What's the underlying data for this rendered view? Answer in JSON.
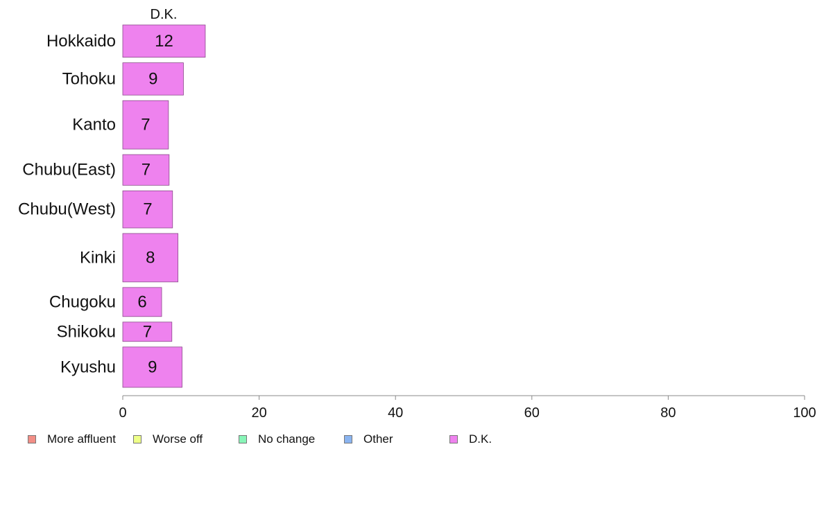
{
  "chart_data": {
    "type": "bar",
    "orientation": "horizontal",
    "title": "D.K.",
    "categories": [
      "Hokkaido",
      "Tohoku",
      "Kanto",
      "Chubu(East)",
      "Chubu(West)",
      "Kinki",
      "Chugoku",
      "Shikoku",
      "Kyushu"
    ],
    "series": [
      {
        "name": "D.K.",
        "values": [
          12.1,
          8.9,
          6.7,
          6.8,
          7.3,
          8.1,
          5.7,
          7.2,
          8.7
        ],
        "labels": [
          "12",
          "9",
          "7",
          "7",
          "7",
          "8",
          "6",
          "7",
          "9"
        ],
        "color": "#ee82ee"
      }
    ],
    "bar_weights": [
      1.0,
      1.0,
      1.5,
      0.95,
      1.15,
      1.5,
      0.9,
      0.6,
      1.25
    ],
    "xlim": [
      0,
      100
    ],
    "xticks": [
      "0",
      "20",
      "40",
      "60",
      "80",
      "100"
    ],
    "xlabel": "",
    "ylabel": "",
    "grid": false,
    "legend": {
      "position": "bottom",
      "items": [
        {
          "label": "More affluent",
          "color": "#f28e86"
        },
        {
          "label": "Worse off",
          "color": "#eeff88"
        },
        {
          "label": "No change",
          "color": "#88f5b8"
        },
        {
          "label": "Other",
          "color": "#8ab4f0"
        },
        {
          "label": "D.K.",
          "color": "#ee82ee"
        }
      ]
    }
  }
}
